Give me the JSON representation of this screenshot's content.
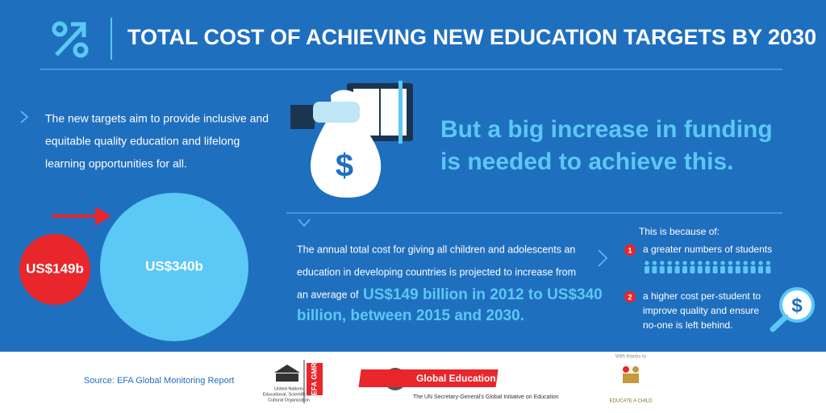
{
  "header": {
    "title": "TOTAL COST OF ACHIEVING NEW EDUCATION TARGETS  BY 2030"
  },
  "intro": {
    "lines": [
      "The new targets aim to provide inclusive and",
      "equitable quality education and lifelong",
      "learning opportunities for all."
    ]
  },
  "headline": {
    "lines": [
      "But a big increase in funding",
      "is needed to achieve this."
    ]
  },
  "circles": {
    "small": "US$149b",
    "large": "US$340b"
  },
  "body": {
    "lines": [
      "The annual total cost for giving all children and adolescents an",
      "education in developing countries is projected to increase from",
      "an average of"
    ],
    "highlight": [
      "US$149 billion in 2012 to US$340",
      "billion, between 2015 and 2030."
    ]
  },
  "reasons": {
    "heading": "This is because of:",
    "items": [
      {
        "number": "1",
        "lines": [
          "a greater numbers of students"
        ]
      },
      {
        "number": "2",
        "lines": [
          "a higher cost per-student to",
          "improve quality and ensure",
          "no-one is left behind."
        ]
      }
    ]
  },
  "footer": {
    "source": "Source: EFA Global Monitoring Report",
    "unesco": [
      "United Nations",
      "Educational, Scientific and",
      "Cultural Organization"
    ],
    "efa": "EFA GMR",
    "gefi": "Global Education First Initiative",
    "gefi_sub": "The UN Secretary-General's Global Initiative on Education",
    "thanks": "With thanks to",
    "eac": "EDUCATE A CHILD"
  }
}
